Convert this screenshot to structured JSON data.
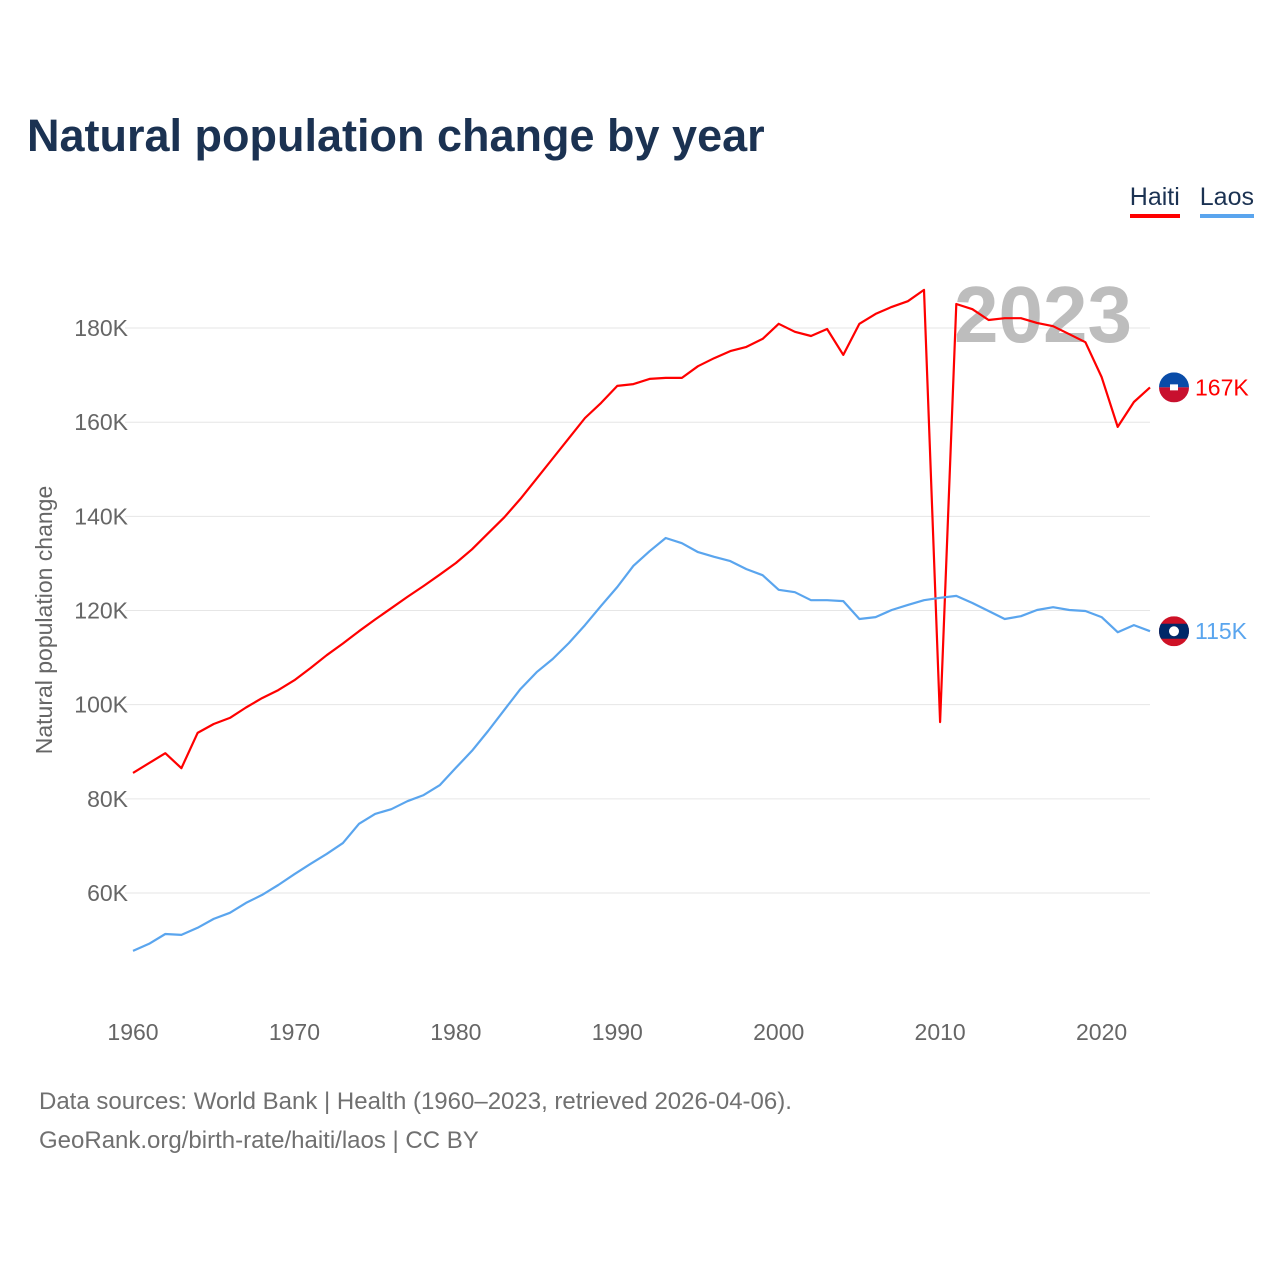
{
  "title": "Natural population change by year",
  "legend": [
    {
      "label": "Haiti",
      "color": "#ff0000"
    },
    {
      "label": "Laos",
      "color": "#5aa5ee"
    }
  ],
  "footer": {
    "line1": "Data sources: World Bank | Health (1960–2023, retrieved 2026-04-06).",
    "line2": "GeoRank.org/birth-rate/haiti/laos | CC BY"
  },
  "chart_data": {
    "type": "line",
    "title": "Natural population change by year",
    "xlabel": "",
    "ylabel": "Natural population change",
    "watermark_year": "2023",
    "xlim": [
      1960,
      2023
    ],
    "ylim": [
      40000,
      195000
    ],
    "xticks": [
      1960,
      1970,
      1980,
      1990,
      2000,
      2010,
      2020
    ],
    "yticks": [
      60000,
      80000,
      100000,
      120000,
      140000,
      160000,
      180000
    ],
    "ytick_labels": [
      "60K",
      "80K",
      "100K",
      "120K",
      "140K",
      "160K",
      "180K"
    ],
    "grid": true,
    "legend_position": "top-right",
    "x": [
      1960,
      1961,
      1962,
      1963,
      1964,
      1965,
      1966,
      1967,
      1968,
      1969,
      1970,
      1971,
      1972,
      1973,
      1974,
      1975,
      1976,
      1977,
      1978,
      1979,
      1980,
      1981,
      1982,
      1983,
      1984,
      1985,
      1986,
      1987,
      1988,
      1989,
      1990,
      1991,
      1992,
      1993,
      1994,
      1995,
      1996,
      1997,
      1998,
      1999,
      2000,
      2001,
      2002,
      2003,
      2004,
      2005,
      2006,
      2007,
      2008,
      2009,
      2010,
      2011,
      2012,
      2013,
      2014,
      2015,
      2016,
      2017,
      2018,
      2019,
      2020,
      2021,
      2022,
      2023
    ],
    "series": [
      {
        "name": "Haiti",
        "color": "#ff0000",
        "end_label": "167K",
        "values": [
          85500,
          87600,
          89700,
          86500,
          94000,
          95900,
          97200,
          99400,
          101400,
          103100,
          105200,
          107800,
          110500,
          113000,
          115600,
          118100,
          120500,
          122900,
          125200,
          127600,
          130100,
          133000,
          136400,
          139800,
          143700,
          148000,
          152300,
          156600,
          160900,
          164100,
          167700,
          168100,
          169200,
          169400,
          169400,
          171900,
          173600,
          175100,
          176000,
          177700,
          180900,
          179200,
          178300,
          179800,
          174300,
          180900,
          183000,
          184500,
          185700,
          188100,
          96300,
          185100,
          184000,
          181700,
          182100,
          182100,
          181100,
          180400,
          178700,
          177000,
          169600,
          159000,
          164300,
          167400
        ]
      },
      {
        "name": "Laos",
        "color": "#5aa5ee",
        "end_label": "115K",
        "values": [
          47700,
          49200,
          51300,
          51100,
          52600,
          54500,
          55800,
          57900,
          59600,
          61700,
          64000,
          66200,
          68300,
          70600,
          74700,
          76800,
          77800,
          79500,
          80800,
          82900,
          86600,
          90200,
          94400,
          98900,
          103300,
          106900,
          109700,
          113100,
          116900,
          121000,
          125000,
          129500,
          132600,
          135400,
          134300,
          132400,
          131400,
          130500,
          128800,
          127500,
          124400,
          123900,
          122200,
          122200,
          122000,
          118200,
          118600,
          120100,
          121200,
          122200,
          122700,
          123100,
          121600,
          119900,
          118200,
          118800,
          120100,
          120700,
          120100,
          119900,
          118600,
          115400,
          116900,
          115600
        ]
      }
    ]
  }
}
